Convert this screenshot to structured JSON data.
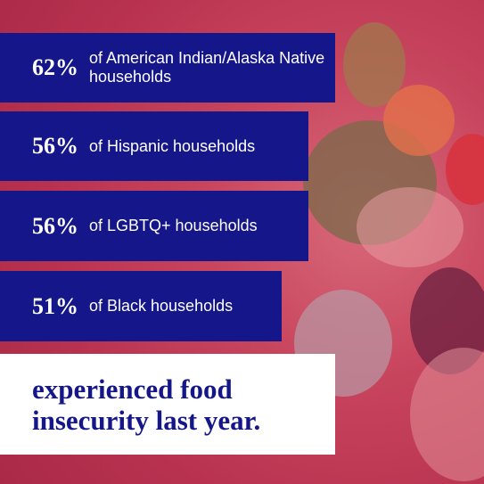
{
  "items": [
    {
      "percent": "62%",
      "label": "of American Indian/Alaska Native households"
    },
    {
      "percent": "56%",
      "label": "of Hispanic households"
    },
    {
      "percent": "56%",
      "label": "of LGBTQ+ households"
    },
    {
      "percent": "51%",
      "label": "of Black households"
    }
  ],
  "footer": "experienced food insecurity last year."
}
